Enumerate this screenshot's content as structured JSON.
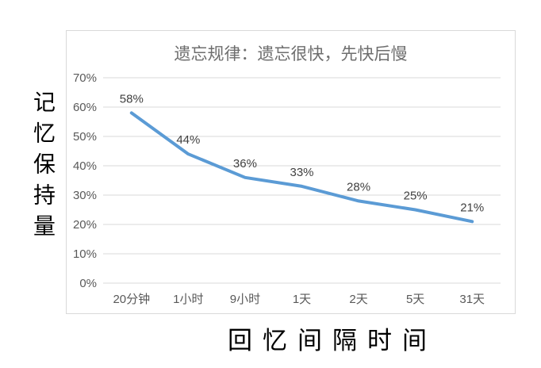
{
  "chart_data": {
    "type": "line",
    "title": "遗忘规律：遗忘很快，先快后慢",
    "xlabel": "回忆间隔时间",
    "ylabel": "记忆保持量",
    "categories": [
      "20分钟",
      "1小时",
      "9小时",
      "1天",
      "2天",
      "5天",
      "31天"
    ],
    "values": [
      58,
      44,
      36,
      33,
      28,
      25,
      21
    ],
    "data_labels": [
      "58%",
      "44%",
      "36%",
      "33%",
      "28%",
      "25%",
      "21%"
    ],
    "y_ticks": [
      "0%",
      "10%",
      "20%",
      "30%",
      "40%",
      "50%",
      "60%",
      "70%"
    ],
    "ylim": [
      0,
      70
    ],
    "y_step": 10,
    "grid": true,
    "legend": false,
    "colors": {
      "line": "#5B9BD5",
      "gridline": "#d9d9d9",
      "frame_border": "#d9d9d9",
      "title": "#6e6e6e",
      "tick_label": "#595959",
      "data_label": "#404040",
      "axis_title": "#000000"
    }
  }
}
